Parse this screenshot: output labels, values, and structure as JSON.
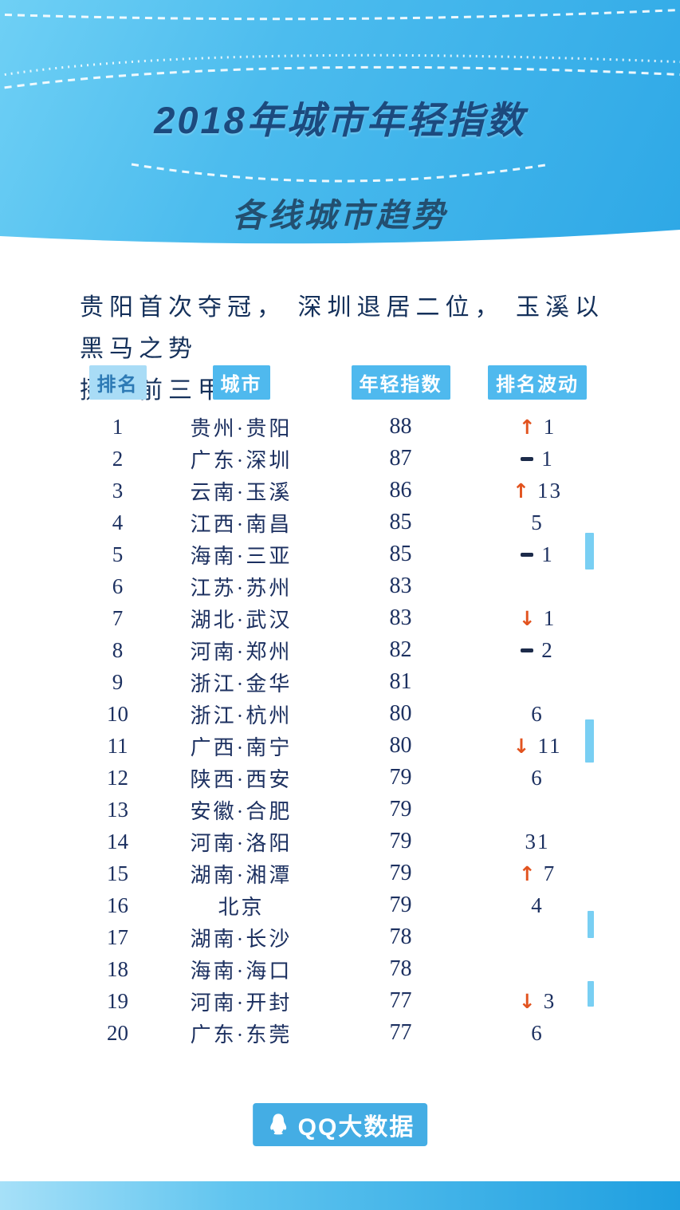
{
  "header": {
    "title": "2018年城市年轻指数",
    "subtitle": "各线城市趋势"
  },
  "intro": {
    "line1": "贵阳首次夺冠， 深圳退居二位， 玉溪以黑马之势",
    "line2": "挺入前三甲。"
  },
  "chart_data": {
    "type": "table",
    "title": "2018年城市年轻指数",
    "subtitle": "各线城市趋势",
    "columns": [
      "排名",
      "城市",
      "年轻指数",
      "排名波动"
    ],
    "rows": [
      {
        "rank": "1",
        "city": "贵州·贵阳",
        "index": "88",
        "change_dir": "up",
        "change": "1"
      },
      {
        "rank": "2",
        "city": "广东·深圳",
        "index": "87",
        "change_dir": "dash",
        "change": "1"
      },
      {
        "rank": "3",
        "city": "云南·玉溪",
        "index": "86",
        "change_dir": "up",
        "change": "13"
      },
      {
        "rank": "4",
        "city": "江西·南昌",
        "index": "85",
        "change_dir": "none",
        "change": "5"
      },
      {
        "rank": "5",
        "city": "海南·三亚",
        "index": "85",
        "change_dir": "dash",
        "change": "1"
      },
      {
        "rank": "6",
        "city": "江苏·苏州",
        "index": "83",
        "change_dir": "none",
        "change": ""
      },
      {
        "rank": "7",
        "city": "湖北·武汉",
        "index": "83",
        "change_dir": "down",
        "change": "1"
      },
      {
        "rank": "8",
        "city": "河南·郑州",
        "index": "82",
        "change_dir": "dash",
        "change": "2"
      },
      {
        "rank": "9",
        "city": "浙江·金华",
        "index": "81",
        "change_dir": "none",
        "change": ""
      },
      {
        "rank": "10",
        "city": "浙江·杭州",
        "index": "80",
        "change_dir": "none",
        "change": "6"
      },
      {
        "rank": "11",
        "city": "广西·南宁",
        "index": "80",
        "change_dir": "down",
        "change": "11"
      },
      {
        "rank": "12",
        "city": "陕西·西安",
        "index": "79",
        "change_dir": "none",
        "change": "6"
      },
      {
        "rank": "13",
        "city": "安徽·合肥",
        "index": "79",
        "change_dir": "none",
        "change": ""
      },
      {
        "rank": "14",
        "city": "河南·洛阳",
        "index": "79",
        "change_dir": "none",
        "change": "31"
      },
      {
        "rank": "15",
        "city": "湖南·湘潭",
        "index": "79",
        "change_dir": "up",
        "change": "7"
      },
      {
        "rank": "16",
        "city": "北京",
        "index": "79",
        "change_dir": "none",
        "change": "4"
      },
      {
        "rank": "17",
        "city": "湖南·长沙",
        "index": "78",
        "change_dir": "none",
        "change": ""
      },
      {
        "rank": "18",
        "city": "海南·海口",
        "index": "78",
        "change_dir": "none",
        "change": ""
      },
      {
        "rank": "19",
        "city": "河南·开封",
        "index": "77",
        "change_dir": "down",
        "change": "3"
      },
      {
        "rank": "20",
        "city": "广东·东莞",
        "index": "77",
        "change_dir": "none",
        "change": "6"
      }
    ]
  },
  "footer": {
    "logo_text": "QQ大数据"
  },
  "colors": {
    "header_blue": "#38b0e8",
    "title_navy": "#1c4a7e",
    "text_navy": "#1c3060",
    "accent_orange": "#e2531f",
    "table_header_blue": "#4fb9ee",
    "table_header_light_blue": "#a9dcf6",
    "logo_blue": "#44ade4"
  }
}
